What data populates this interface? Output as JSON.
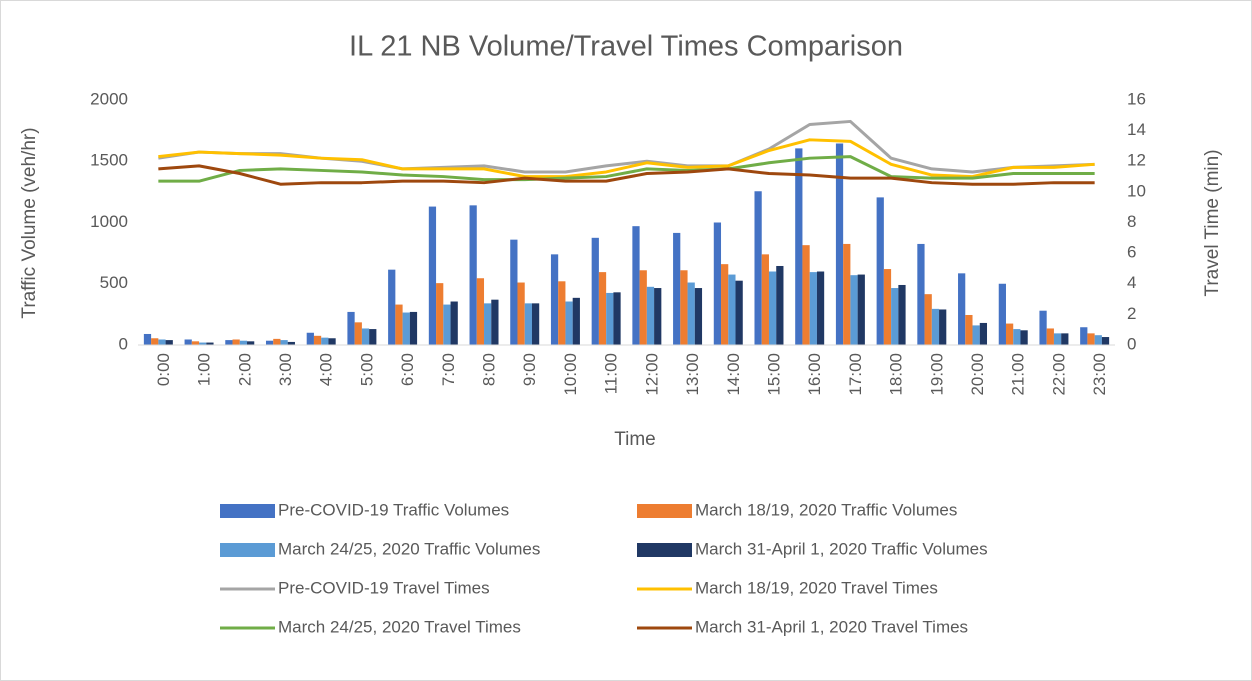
{
  "chart_data": {
    "type": "bar-line",
    "title": "IL 21 NB Volume/Travel Times Comparison",
    "x_label": "Time",
    "y_label": "Traffic Volume (veh/hr)",
    "y2_label": "Travel Time (min)",
    "categories": [
      "0:00",
      "1:00",
      "2:00",
      "3:00",
      "4:00",
      "5:00",
      "6:00",
      "7:00",
      "8:00",
      "9:00",
      "10:00",
      "11:00",
      "12:00",
      "13:00",
      "14:00",
      "15:00",
      "16:00",
      "17:00",
      "18:00",
      "19:00",
      "20:00",
      "21:00",
      "22:00",
      "23:00"
    ],
    "ylim": [
      0,
      2000
    ],
    "yticks": [
      0,
      500,
      1000,
      1500,
      2000
    ],
    "y2lim": [
      0,
      16
    ],
    "y2ticks": [
      0,
      2,
      4,
      6,
      8,
      10,
      12,
      14,
      16
    ],
    "series": [
      {
        "name": "Pre-COVID-19 Traffic Volumes",
        "type": "bar",
        "color": "#4472c4",
        "values": [
          90,
          45,
          40,
          35,
          100,
          270,
          615,
          1130,
          1140,
          860,
          740,
          875,
          970,
          915,
          1000,
          1255,
          1605,
          1645,
          1205,
          825,
          585,
          500,
          280,
          145
        ]
      },
      {
        "name": "March 18/19, 2020 Traffic Volumes",
        "type": "bar",
        "color": "#ed7d31",
        "values": [
          55,
          30,
          45,
          50,
          75,
          185,
          330,
          505,
          545,
          510,
          520,
          595,
          610,
          610,
          660,
          740,
          815,
          825,
          620,
          415,
          245,
          175,
          135,
          95
        ]
      },
      {
        "name": "March 24/25, 2020 Traffic Volumes",
        "type": "bar",
        "color": "#5b9bd5",
        "values": [
          45,
          20,
          35,
          40,
          60,
          135,
          265,
          330,
          340,
          340,
          355,
          425,
          475,
          510,
          575,
          600,
          595,
          570,
          465,
          295,
          160,
          130,
          95,
          80
        ]
      },
      {
        "name": "March 31-April 1, 2020 Traffic Volumes",
        "type": "bar",
        "color": "#203864",
        "values": [
          40,
          20,
          30,
          25,
          55,
          130,
          270,
          355,
          370,
          340,
          385,
          430,
          465,
          465,
          525,
          645,
          600,
          575,
          490,
          290,
          180,
          120,
          95,
          65
        ]
      },
      {
        "name": "Pre-COVID-19 Travel Times",
        "type": "line",
        "axis": "y2",
        "color": "#a5a5a5",
        "values": [
          12.2,
          12.6,
          12.5,
          12.5,
          12.2,
          12.0,
          11.5,
          11.6,
          11.7,
          11.3,
          11.3,
          11.7,
          12.0,
          11.7,
          11.7,
          12.8,
          14.4,
          14.6,
          12.2,
          11.5,
          11.3,
          11.6,
          11.7,
          11.8
        ]
      },
      {
        "name": "March 18/19, 2020 Travel Times",
        "type": "line",
        "axis": "y2",
        "color": "#ffc000",
        "values": [
          12.3,
          12.6,
          12.5,
          12.4,
          12.2,
          12.1,
          11.5,
          11.5,
          11.5,
          11.0,
          11.0,
          11.3,
          11.9,
          11.6,
          11.7,
          12.7,
          13.4,
          13.3,
          11.8,
          11.1,
          11.0,
          11.6,
          11.6,
          11.8
        ]
      },
      {
        "name": "March 24/25, 2020 Travel Times",
        "type": "line",
        "axis": "y2",
        "color": "#70ad47",
        "values": [
          10.7,
          10.7,
          11.4,
          11.5,
          11.4,
          11.3,
          11.1,
          11.0,
          10.8,
          10.8,
          10.9,
          11.0,
          11.5,
          11.4,
          11.5,
          11.9,
          12.2,
          12.3,
          11.0,
          10.9,
          10.9,
          11.2,
          11.2,
          11.2
        ]
      },
      {
        "name": "March 31-April 1, 2020 Travel Times",
        "type": "line",
        "axis": "y2",
        "color": "#9e480e",
        "values": [
          11.5,
          11.7,
          11.2,
          10.5,
          10.6,
          10.6,
          10.7,
          10.7,
          10.6,
          10.9,
          10.7,
          10.7,
          11.2,
          11.3,
          11.5,
          11.2,
          11.1,
          10.9,
          10.9,
          10.6,
          10.5,
          10.5,
          10.6,
          10.6
        ]
      }
    ]
  }
}
